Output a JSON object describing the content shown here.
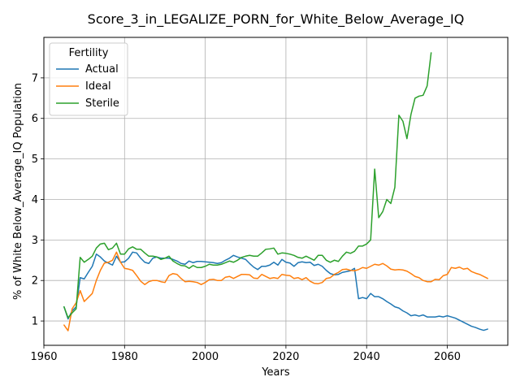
{
  "chart_data": {
    "type": "line",
    "title": "Score_3_in_LEGALIZE_PORN_for_White_Below_Average_IQ",
    "xlabel": "Years",
    "ylabel": "% of White Below_Average_IQ Population",
    "xlim": [
      1960,
      2075
    ],
    "ylim": [
      0.4,
      8.0
    ],
    "xticks": [
      1960,
      1980,
      2000,
      2020,
      2040,
      2060
    ],
    "yticks": [
      1,
      2,
      3,
      4,
      5,
      6,
      7
    ],
    "grid": true,
    "legend": {
      "title": "Fertility",
      "placement": "top-left"
    },
    "series": [
      {
        "name": "Actual",
        "color": "#1f77b4",
        "x": [
          1965,
          1966,
          1967,
          1968,
          1969,
          1970,
          1971,
          1972,
          1973,
          1974,
          1975,
          1976,
          1977,
          1978,
          1979,
          1980,
          1981,
          1982,
          1983,
          1984,
          1985,
          1986,
          1987,
          1988,
          1989,
          1990,
          1991,
          1992,
          1993,
          1994,
          1995,
          1996,
          1997,
          1998,
          1999,
          2000,
          2001,
          2002,
          2003,
          2004,
          2005,
          2006,
          2007,
          2008,
          2009,
          2010,
          2011,
          2012,
          2013,
          2014,
          2015,
          2016,
          2017,
          2018,
          2019,
          2020,
          2021,
          2022,
          2023,
          2024,
          2025,
          2026,
          2027,
          2028,
          2029,
          2030,
          2031,
          2032,
          2033,
          2034,
          2035,
          2036,
          2037,
          2038,
          2039,
          2040,
          2041,
          2042,
          2043,
          2044,
          2045,
          2046,
          2047,
          2048,
          2049,
          2050,
          2051,
          2052,
          2053,
          2054,
          2055,
          2056,
          2057,
          2058,
          2059,
          2060,
          2061,
          2062,
          2063,
          2064,
          2065,
          2066,
          2067,
          2068,
          2069,
          2070
        ],
        "values": [
          1.35,
          1.05,
          1.25,
          1.35,
          2.07,
          2.04,
          2.2,
          2.35,
          2.65,
          2.58,
          2.48,
          2.43,
          2.38,
          2.6,
          2.45,
          2.46,
          2.55,
          2.7,
          2.68,
          2.55,
          2.45,
          2.42,
          2.55,
          2.58,
          2.55,
          2.55,
          2.55,
          2.52,
          2.48,
          2.42,
          2.4,
          2.48,
          2.44,
          2.47,
          2.47,
          2.46,
          2.45,
          2.44,
          2.42,
          2.44,
          2.5,
          2.55,
          2.62,
          2.58,
          2.55,
          2.52,
          2.42,
          2.33,
          2.27,
          2.35,
          2.35,
          2.38,
          2.45,
          2.38,
          2.52,
          2.45,
          2.43,
          2.35,
          2.44,
          2.46,
          2.44,
          2.45,
          2.37,
          2.4,
          2.35,
          2.25,
          2.17,
          2.14,
          2.15,
          2.2,
          2.22,
          2.24,
          2.3,
          1.55,
          1.58,
          1.55,
          1.68,
          1.6,
          1.6,
          1.55,
          1.48,
          1.42,
          1.35,
          1.32,
          1.25,
          1.2,
          1.13,
          1.15,
          1.12,
          1.15,
          1.1,
          1.1,
          1.1,
          1.12,
          1.1,
          1.13,
          1.1,
          1.07,
          1.02,
          0.97,
          0.92,
          0.87,
          0.84,
          0.8,
          0.77,
          0.8
        ]
      },
      {
        "name": "Ideal",
        "color": "#ff7f0e",
        "x": [
          1965,
          1966,
          1967,
          1968,
          1969,
          1970,
          1971,
          1972,
          1973,
          1974,
          1975,
          1976,
          1977,
          1978,
          1979,
          1980,
          1981,
          1982,
          1983,
          1984,
          1985,
          1986,
          1987,
          1988,
          1989,
          1990,
          1991,
          1992,
          1993,
          1994,
          1995,
          1996,
          1997,
          1998,
          1999,
          2000,
          2001,
          2002,
          2003,
          2004,
          2005,
          2006,
          2007,
          2008,
          2009,
          2010,
          2011,
          2012,
          2013,
          2014,
          2015,
          2016,
          2017,
          2018,
          2019,
          2020,
          2021,
          2022,
          2023,
          2024,
          2025,
          2026,
          2027,
          2028,
          2029,
          2030,
          2031,
          2032,
          2033,
          2034,
          2035,
          2036,
          2037,
          2038,
          2039,
          2040,
          2041,
          2042,
          2043,
          2044,
          2045,
          2046,
          2047,
          2048,
          2049,
          2050,
          2051,
          2052,
          2053,
          2054,
          2055,
          2056,
          2057,
          2058,
          2059,
          2060,
          2061,
          2062,
          2063,
          2064,
          2065,
          2066,
          2067,
          2068,
          2069,
          2070
        ],
        "values": [
          0.9,
          0.76,
          1.3,
          1.45,
          1.75,
          1.48,
          1.58,
          1.68,
          2.0,
          2.25,
          2.43,
          2.45,
          2.5,
          2.7,
          2.45,
          2.3,
          2.28,
          2.25,
          2.12,
          1.98,
          1.9,
          1.97,
          2.0,
          2.0,
          1.97,
          1.95,
          2.12,
          2.17,
          2.15,
          2.05,
          1.97,
          1.98,
          1.97,
          1.95,
          1.9,
          1.95,
          2.02,
          2.03,
          2.0,
          2.0,
          2.08,
          2.1,
          2.05,
          2.1,
          2.15,
          2.15,
          2.14,
          2.06,
          2.05,
          2.15,
          2.1,
          2.05,
          2.07,
          2.05,
          2.15,
          2.13,
          2.12,
          2.05,
          2.07,
          2.02,
          2.07,
          1.98,
          1.93,
          1.92,
          1.95,
          2.05,
          2.07,
          2.15,
          2.2,
          2.27,
          2.28,
          2.25,
          2.24,
          2.27,
          2.32,
          2.3,
          2.35,
          2.4,
          2.38,
          2.42,
          2.36,
          2.28,
          2.26,
          2.27,
          2.26,
          2.23,
          2.17,
          2.1,
          2.07,
          2.0,
          1.97,
          1.97,
          2.03,
          2.02,
          2.12,
          2.15,
          2.32,
          2.3,
          2.33,
          2.28,
          2.3,
          2.22,
          2.18,
          2.15,
          2.1,
          2.05
        ]
      },
      {
        "name": "Sterile",
        "color": "#2ca02c",
        "x": [
          1965,
          1966,
          1967,
          1968,
          1969,
          1970,
          1971,
          1972,
          1973,
          1974,
          1975,
          1976,
          1977,
          1978,
          1979,
          1980,
          1981,
          1982,
          1983,
          1984,
          1985,
          1986,
          1987,
          1988,
          1989,
          1990,
          1991,
          1992,
          1993,
          1994,
          1995,
          1996,
          1997,
          1998,
          1999,
          2000,
          2001,
          2002,
          2003,
          2004,
          2005,
          2006,
          2007,
          2008,
          2009,
          2010,
          2011,
          2012,
          2013,
          2014,
          2015,
          2016,
          2017,
          2018,
          2019,
          2020,
          2021,
          2022,
          2023,
          2024,
          2025,
          2026,
          2027,
          2028,
          2029,
          2030,
          2031,
          2032,
          2033,
          2034,
          2035,
          2036,
          2037,
          2038,
          2039,
          2040,
          2041,
          2042,
          2043,
          2044,
          2045,
          2046,
          2047,
          2048,
          2049,
          2050,
          2051,
          2052,
          2053,
          2054,
          2055,
          2056
        ],
        "values": [
          1.35,
          1.08,
          1.2,
          1.3,
          2.57,
          2.45,
          2.52,
          2.6,
          2.8,
          2.9,
          2.92,
          2.76,
          2.8,
          2.92,
          2.65,
          2.65,
          2.78,
          2.83,
          2.77,
          2.77,
          2.68,
          2.6,
          2.6,
          2.58,
          2.52,
          2.55,
          2.6,
          2.48,
          2.42,
          2.37,
          2.36,
          2.3,
          2.37,
          2.32,
          2.32,
          2.35,
          2.4,
          2.38,
          2.38,
          2.4,
          2.44,
          2.48,
          2.45,
          2.5,
          2.57,
          2.6,
          2.62,
          2.6,
          2.6,
          2.68,
          2.77,
          2.78,
          2.8,
          2.65,
          2.68,
          2.67,
          2.65,
          2.62,
          2.57,
          2.55,
          2.6,
          2.55,
          2.5,
          2.62,
          2.62,
          2.5,
          2.45,
          2.5,
          2.47,
          2.6,
          2.7,
          2.67,
          2.72,
          2.85,
          2.85,
          2.9,
          3.0,
          4.75,
          3.55,
          3.7,
          4.0,
          3.9,
          4.3,
          6.08,
          5.93,
          5.5,
          6.1,
          6.5,
          6.55,
          6.57,
          6.8,
          7.62
        ]
      }
    ]
  }
}
